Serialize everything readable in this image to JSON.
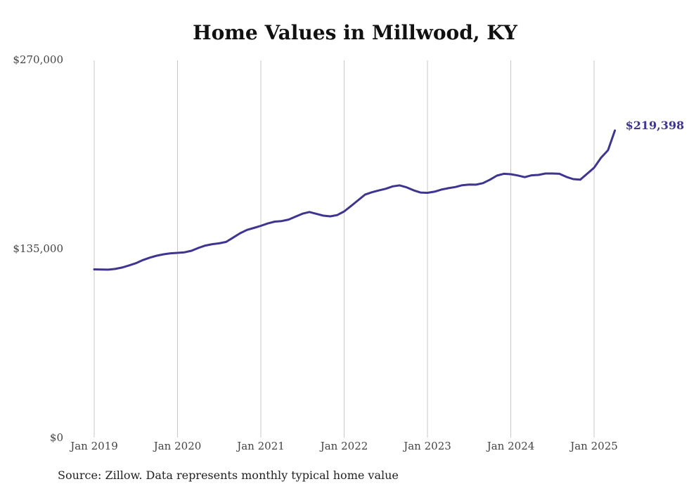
{
  "chart_data": {
    "type": "line",
    "title": "Home Values in Millwood, KY",
    "xlabel": "",
    "ylabel": "",
    "ylim": [
      0,
      270000
    ],
    "y_ticks": [
      0,
      135000,
      270000
    ],
    "y_tick_labels": [
      "$0",
      "$135,000",
      "$270,000"
    ],
    "x_ticks": [
      "2019-01",
      "2020-01",
      "2021-01",
      "2022-01",
      "2023-01",
      "2024-01",
      "2025-01"
    ],
    "x_tick_labels": [
      "Jan 2019",
      "Jan 2020",
      "Jan 2021",
      "Jan 2022",
      "Jan 2023",
      "Jan 2024",
      "Jan 2025"
    ],
    "grid": "vertical gridlines at year ticks",
    "end_label": "$219,398",
    "colors": {
      "line": "#3d3590",
      "grid": "#c8c8c8",
      "end_label": "#3d3590"
    },
    "series": [
      {
        "x": [
          "2019-01",
          "2019-03",
          "2019-04",
          "2019-05",
          "2019-06",
          "2019-07",
          "2019-08",
          "2019-09",
          "2019-10",
          "2019-11",
          "2019-12",
          "2020-01",
          "2020-02",
          "2020-03",
          "2020-04",
          "2020-05",
          "2020-06",
          "2020-07",
          "2020-08",
          "2020-09",
          "2020-10",
          "2020-11",
          "2020-12",
          "2021-01",
          "2021-02",
          "2021-03",
          "2021-04",
          "2021-05",
          "2021-06",
          "2021-07",
          "2021-08",
          "2021-09",
          "2021-10",
          "2021-11",
          "2021-12",
          "2022-01",
          "2022-02",
          "2022-03",
          "2022-04",
          "2022-05",
          "2022-06",
          "2022-07",
          "2022-08",
          "2022-09",
          "2022-10",
          "2022-11",
          "2022-12",
          "2023-01",
          "2023-02",
          "2023-03",
          "2023-04",
          "2023-05",
          "2023-06",
          "2023-07",
          "2023-08",
          "2023-09",
          "2023-10",
          "2023-11",
          "2023-12",
          "2024-01",
          "2024-02",
          "2024-03",
          "2024-04",
          "2024-05",
          "2024-06",
          "2024-07",
          "2024-08",
          "2024-09",
          "2024-10",
          "2024-11",
          "2024-12",
          "2025-01",
          "2025-02",
          "2025-03",
          "2025-04"
        ],
        "values": [
          120200,
          120000,
          120500,
          121500,
          123000,
          124600,
          126800,
          128600,
          130000,
          131000,
          131700,
          132000,
          132400,
          133500,
          135500,
          137200,
          138200,
          138800,
          139800,
          142900,
          146000,
          148400,
          149800,
          151300,
          153000,
          154300,
          154700,
          155800,
          157900,
          160000,
          161200,
          159900,
          158600,
          158100,
          159000,
          161600,
          165500,
          169600,
          173600,
          175300,
          176600,
          177800,
          179500,
          180200,
          178800,
          176700,
          175100,
          174900,
          175700,
          177200,
          178200,
          179000,
          180300,
          180800,
          180700,
          181800,
          184300,
          187200,
          188500,
          188200,
          187300,
          186100,
          187400,
          187700,
          188700,
          188700,
          188500,
          186300,
          184700,
          184300,
          188500,
          192800,
          200000,
          205300,
          219398
        ]
      }
    ]
  },
  "footer": {
    "source": "Source: Zillow. Data represents monthly typical home value"
  }
}
